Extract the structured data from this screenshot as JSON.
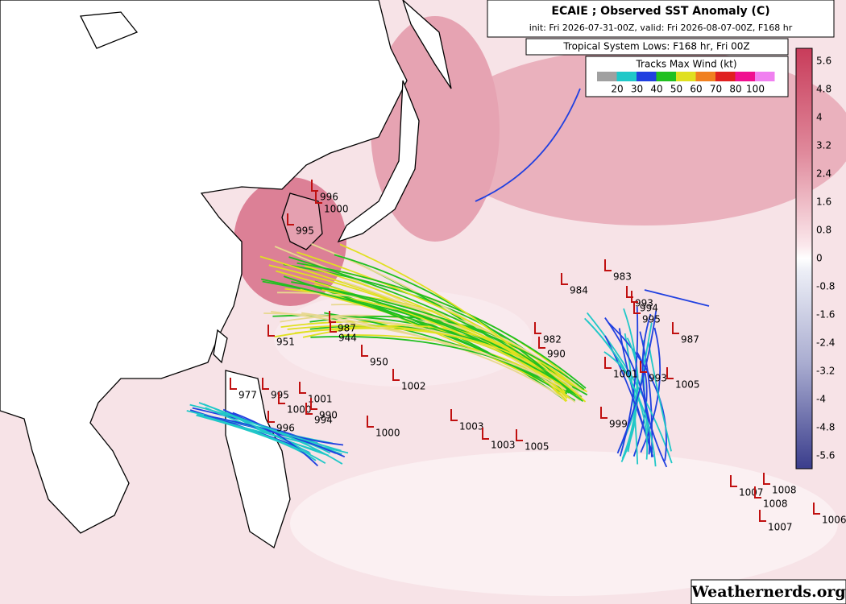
{
  "header": {
    "title": "ECAIE ; Observed SST Anomaly (C)",
    "subtitle": "init: Fri 2026-07-31-00Z, valid: Fri 2026-08-07-00Z, F168 hr",
    "lows_title": "Tropical System Lows: F168 hr, Fri 00Z"
  },
  "wind_legend": {
    "title": "Tracks Max Wind (kt)",
    "labels": [
      "20",
      "30",
      "40",
      "50",
      "60",
      "70",
      "80",
      "100"
    ],
    "colors": [
      "#a0a0a0",
      "#20c8c8",
      "#2040e0",
      "#20c020",
      "#e0e020",
      "#f08020",
      "#e02020",
      "#f01090",
      "#f080f0"
    ]
  },
  "colorbar": {
    "labels": [
      "5.6",
      "4.8",
      "4",
      "3.2",
      "2.4",
      "1.6",
      "0.8",
      "0",
      "-0.8",
      "-1.6",
      "-2.4",
      "-3.2",
      "-4",
      "-4.8",
      "-5.6"
    ]
  },
  "pressure_labels": [
    "996",
    "1000",
    "995",
    "982",
    "990",
    "1002",
    "950",
    "944",
    "951",
    "987",
    "983",
    "984",
    "993",
    "994",
    "995",
    "987",
    "1005",
    "993",
    "1001",
    "977",
    "995",
    "1001",
    "1000",
    "994",
    "990",
    "996",
    "1000",
    "1003",
    "1003",
    "1005",
    "999",
    "1007",
    "1008",
    "1006",
    "1007",
    "1008"
  ],
  "watermark": "Weathernerds.org"
}
